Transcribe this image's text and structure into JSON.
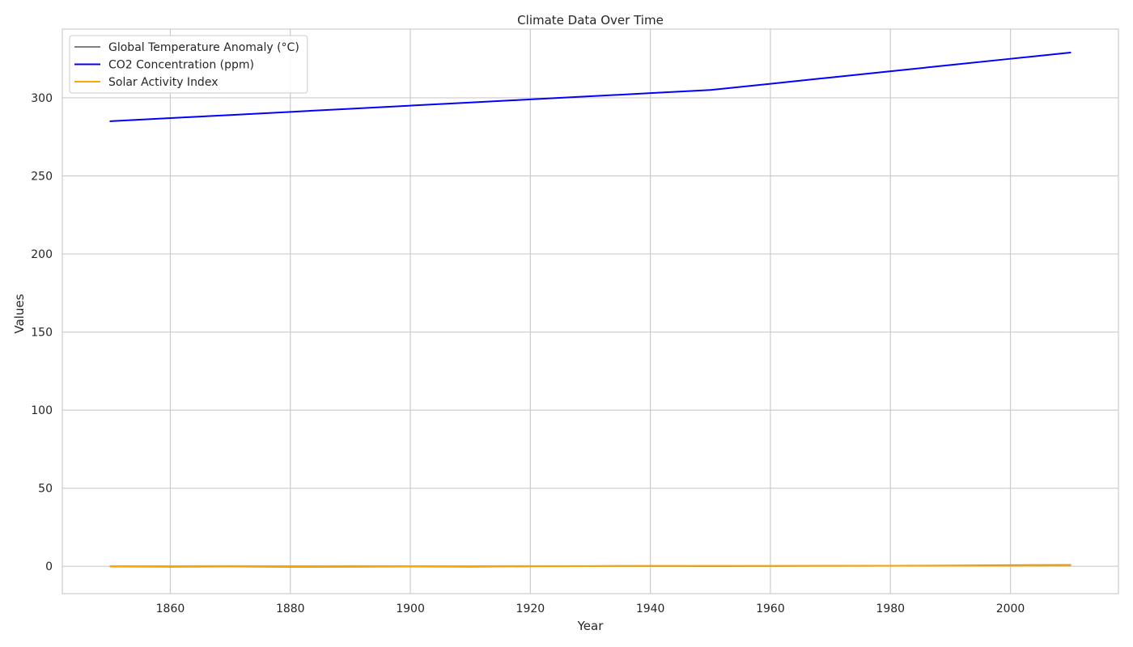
{
  "chart_data": {
    "type": "line",
    "title": "Climate Data Over Time",
    "xlabel": "Year",
    "ylabel": "Values",
    "xlim": [
      1842,
      2018
    ],
    "ylim": [
      -17.5,
      344
    ],
    "x_ticks": [
      1860,
      1880,
      1900,
      1920,
      1940,
      1960,
      1980,
      2000
    ],
    "y_ticks": [
      0,
      50,
      100,
      150,
      200,
      250,
      300
    ],
    "grid": true,
    "legend_position": "top-left",
    "x": [
      1850,
      1860,
      1870,
      1880,
      1890,
      1900,
      1910,
      1920,
      1930,
      1940,
      1950,
      1960,
      1970,
      1980,
      1990,
      2000,
      2010
    ],
    "series": [
      {
        "name": "Global Temperature Anomaly (°C)",
        "color": "#808080",
        "values": [
          -0.1,
          -0.2,
          -0.1,
          -0.3,
          -0.2,
          -0.1,
          -0.2,
          0.0,
          0.1,
          0.2,
          0.1,
          0.2,
          0.3,
          0.4,
          0.5,
          0.7,
          0.8
        ]
      },
      {
        "name": "CO2 Concentration (ppm)",
        "color": "#0000ff",
        "values": [
          285,
          287,
          289,
          291,
          293,
          295,
          297,
          299,
          301,
          303,
          305,
          309,
          313,
          317,
          321,
          325,
          329
        ]
      },
      {
        "name": "Solar Activity Index",
        "color": "#ffa500",
        "values": [
          0.1,
          0.1,
          0.2,
          0.1,
          0.2,
          0.1,
          0.1,
          0.2,
          0.2,
          0.3,
          0.3,
          0.3,
          0.3,
          0.4,
          0.4,
          0.4,
          0.5
        ]
      }
    ]
  }
}
